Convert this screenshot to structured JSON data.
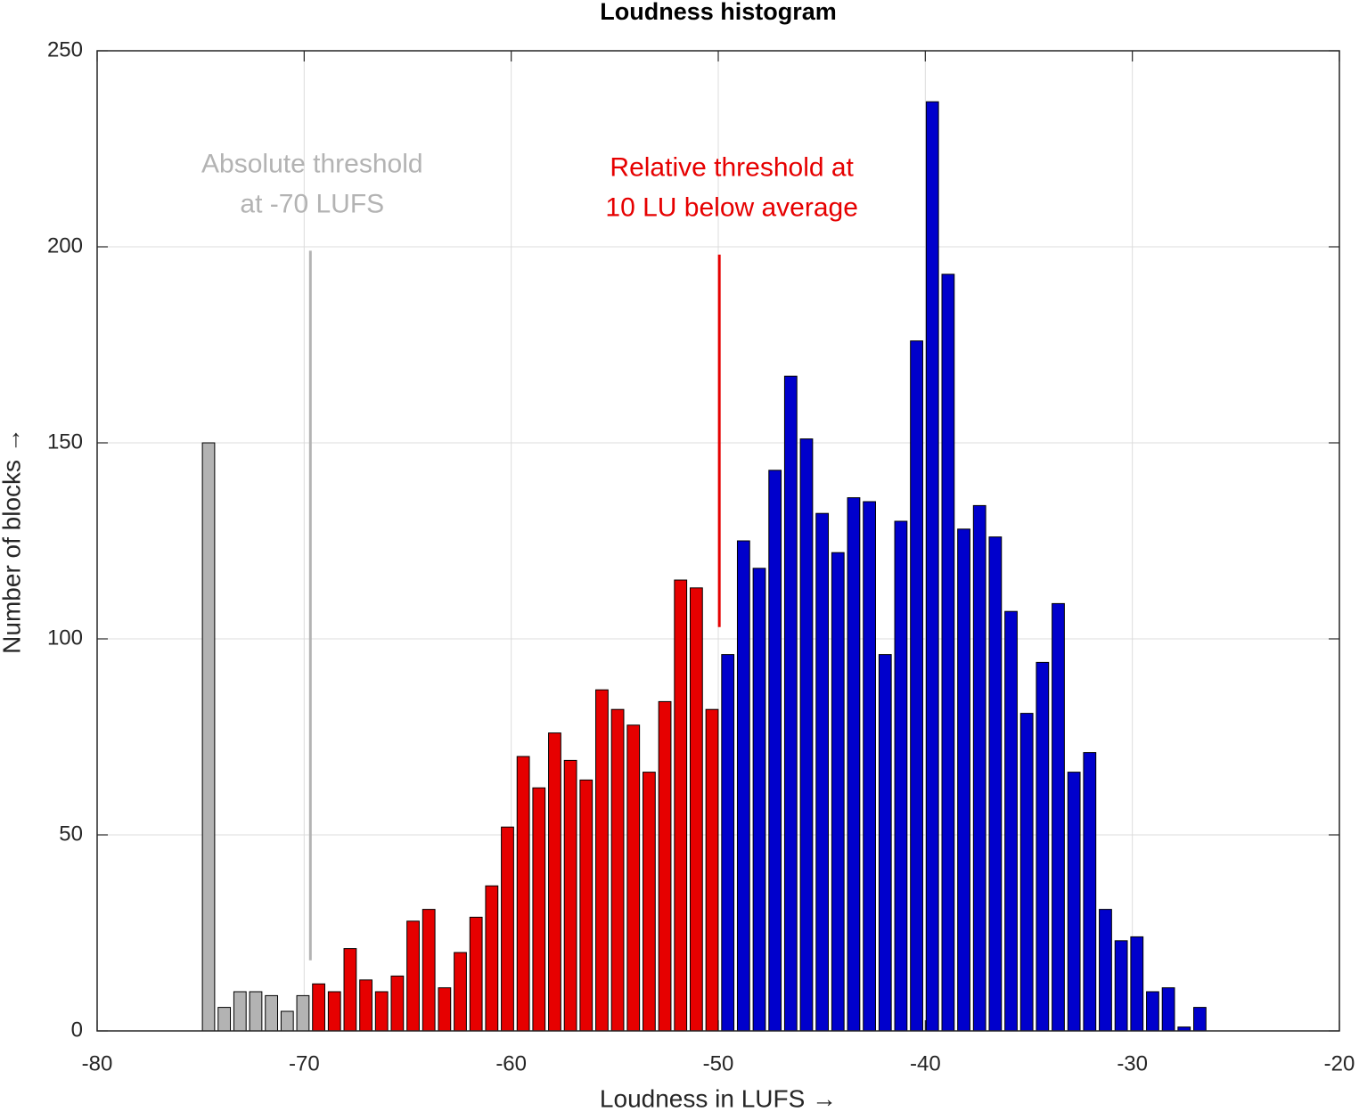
{
  "chart_data": {
    "type": "histogram",
    "title": "Loudness histogram",
    "x_label": "Loudness in LUFS →",
    "y_label": "Number of blocks →",
    "xlim": [
      -80,
      -20
    ],
    "xticks": [
      -80,
      -70,
      -60,
      -50,
      -40,
      -30,
      -20
    ],
    "ylim": [
      0,
      250
    ],
    "yticks": [
      0,
      50,
      100,
      150,
      200,
      250
    ],
    "grid": true,
    "series": [
      {
        "color": "#b3b3b3",
        "bins": [
          -75,
          -74.24,
          -73.48,
          -72.72,
          -71.96,
          -71.2,
          -70.44,
          -69.68
        ],
        "counts": [
          150,
          6,
          10,
          10,
          9,
          5,
          9
        ]
      },
      {
        "color": "#e60000",
        "bins": [
          -69.68,
          -68.92,
          -68.16,
          -67.4,
          -66.64,
          -65.88,
          -65.12,
          -64.36,
          -63.6,
          -62.84,
          -62.08,
          -61.32,
          -60.56,
          -59.8,
          -59.04,
          -58.28,
          -57.52,
          -56.76,
          -56,
          -55.24,
          -54.48,
          -53.72,
          -52.96,
          -52.2,
          -51.44,
          -50.68,
          -49.92
        ],
        "counts": [
          12,
          10,
          21,
          13,
          10,
          14,
          28,
          31,
          11,
          20,
          29,
          37,
          52,
          70,
          62,
          76,
          69,
          64,
          87,
          82,
          78,
          66,
          84,
          115,
          113,
          82
        ]
      },
      {
        "color": "#0000cc",
        "bins": [
          -49.92,
          -49.16,
          -48.4,
          -47.64,
          -46.88,
          -46.12,
          -45.36,
          -44.6,
          -43.84,
          -43.08,
          -42.32,
          -41.56,
          -40.8,
          -40.04,
          -39.28,
          -38.52,
          -37.76,
          -37,
          -36.24,
          -35.48,
          -34.72,
          -33.96,
          -33.2,
          -32.44,
          -31.68,
          -30.92,
          -30.16,
          -29.4,
          -28.64,
          -27.88,
          -27.12,
          -26.36
        ],
        "counts": [
          96,
          125,
          118,
          143,
          167,
          151,
          132,
          122,
          136,
          135,
          96,
          130,
          176,
          237,
          193,
          128,
          134,
          126,
          107,
          81,
          94,
          109,
          66,
          71,
          31,
          23,
          24,
          10,
          11,
          1,
          6
        ]
      }
    ],
    "thresholds": [
      {
        "text": [
          "Absolute threshold",
          "at -70 LUFS"
        ],
        "x": -69.7,
        "y": [
          18,
          199
        ],
        "color": "#b3b3b3"
      },
      {
        "text": [
          "Relative threshold at",
          "10 LU below average"
        ],
        "x": -49.95,
        "y": [
          103,
          198
        ],
        "color": "#e60000"
      }
    ]
  }
}
